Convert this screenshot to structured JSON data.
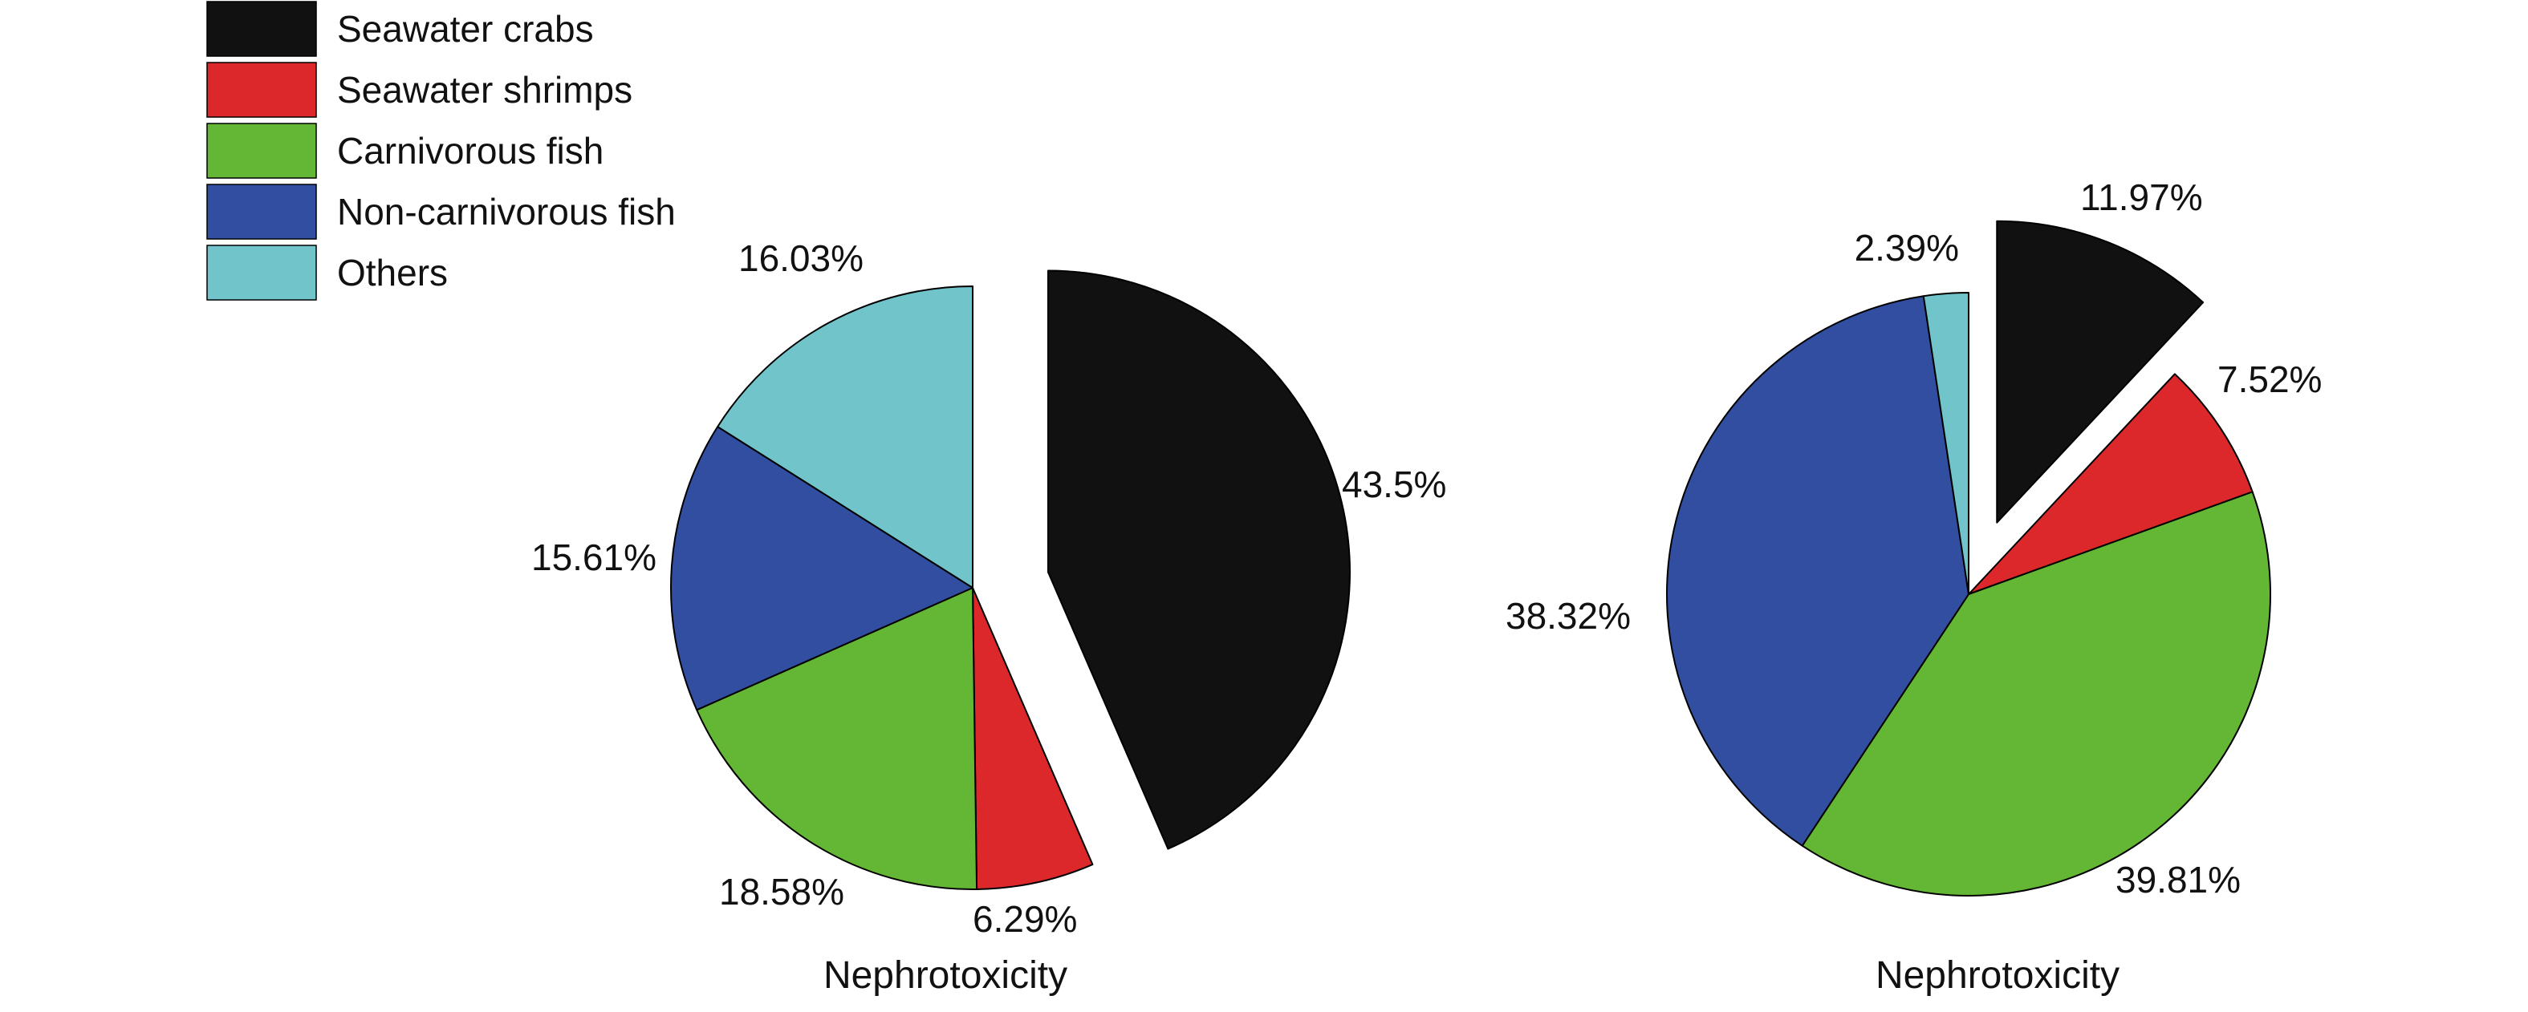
{
  "legend": [
    {
      "label": "Seawater crabs",
      "color": "#111111"
    },
    {
      "label": "Seawater shrimps",
      "color": "#dc282b"
    },
    {
      "label": "Carnivorous fish",
      "color": "#63b734"
    },
    {
      "label": "Non-carnivorous fish",
      "color": "#324ea0"
    },
    {
      "label": "Others",
      "color": "#71c4c9"
    }
  ],
  "chart_data": [
    {
      "type": "pie",
      "title": "",
      "caption": "Nephrotoxicity",
      "exploded": "Seawater crabs",
      "slices": [
        {
          "name": "Seawater crabs",
          "value": 43.5,
          "label": "43.5%",
          "color": "#111111"
        },
        {
          "name": "Seawater shrimps",
          "value": 6.29,
          "label": "6.29%",
          "color": "#dc282b"
        },
        {
          "name": "Carnivorous fish",
          "value": 18.58,
          "label": "18.58%",
          "color": "#63b734"
        },
        {
          "name": "Non-carnivorous fish",
          "value": 15.61,
          "label": "15.61%",
          "color": "#324ea0"
        },
        {
          "name": "Others",
          "value": 16.03,
          "label": "16.03%",
          "color": "#71c4c9"
        }
      ]
    },
    {
      "type": "pie",
      "title": "",
      "caption": "Nephrotoxicity",
      "exploded": "Seawater crabs",
      "slices": [
        {
          "name": "Seawater crabs",
          "value": 11.97,
          "label": "11.97%",
          "color": "#111111"
        },
        {
          "name": "Seawater shrimps",
          "value": 7.52,
          "label": "7.52%",
          "color": "#dc282b"
        },
        {
          "name": "Carnivorous fish",
          "value": 39.81,
          "label": "39.81%",
          "color": "#63b734"
        },
        {
          "name": "Non-carnivorous fish",
          "value": 38.32,
          "label": "38.32%",
          "color": "#324ea0"
        },
        {
          "name": "Others",
          "value": 2.39,
          "label": "2.39%",
          "color": "#71c4c9"
        }
      ]
    }
  ]
}
